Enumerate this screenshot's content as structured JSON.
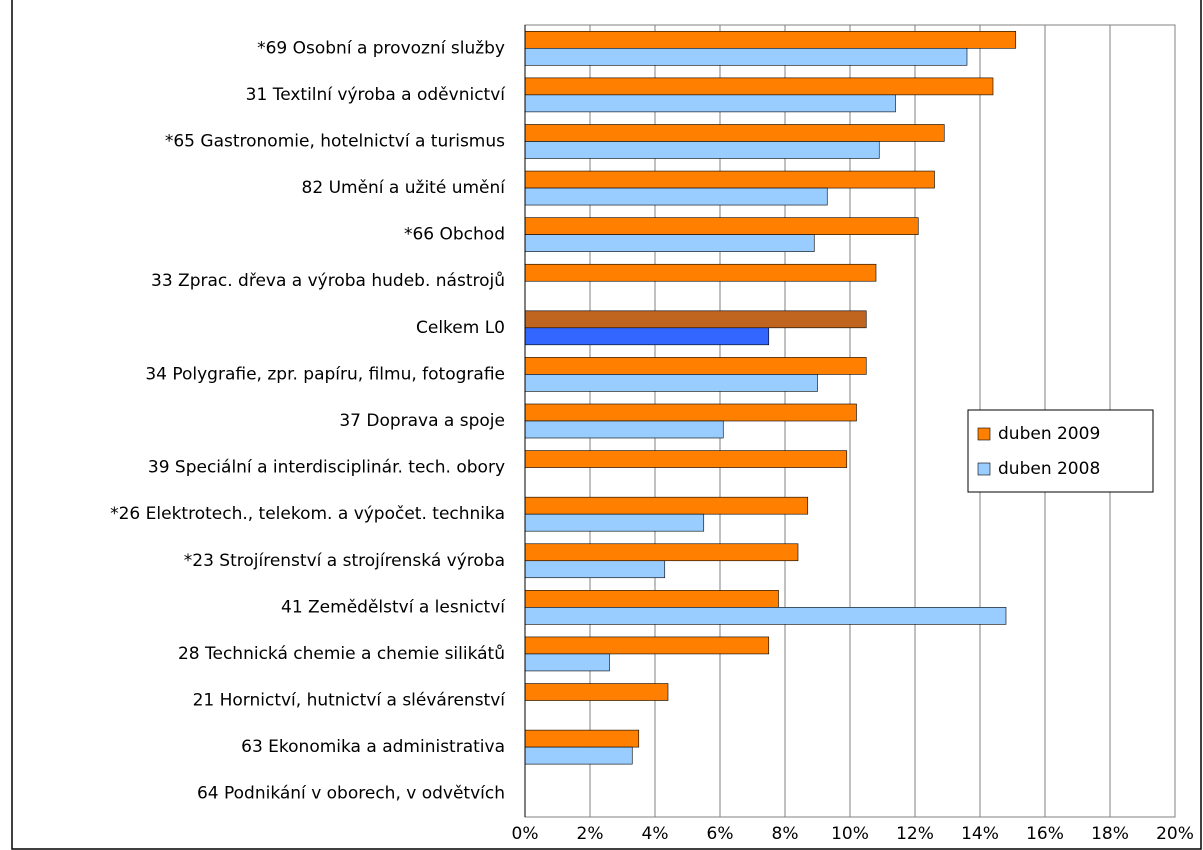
{
  "chart_data": {
    "type": "barh",
    "categories": [
      "*69 Osobní a provozní služby",
      "31 Textilní výroba a oděvnictví",
      "*65 Gastronomie, hotelnictví a turismus",
      "82 Umění a užité umění",
      "*66 Obchod",
      "33 Zprac. dřeva a výroba hudeb. nástrojů",
      "Celkem L0",
      "34 Polygrafie, zpr. papíru, filmu, fotografie",
      "37 Doprava a spoje",
      "39 Speciální a interdisciplinár. tech. obory",
      "*26 Elektrotech., telekom. a výpočet. technika",
      "*23 Strojírenství a strojírenská výroba",
      "41 Zemědělství a lesnictví",
      "28 Technická chemie a chemie silikátů",
      "21 Hornictví, hutnictví a slévárenství",
      "63 Ekonomika a administrativa",
      "64 Podnikání v oborech, v odvětvích"
    ],
    "series": [
      {
        "name": "duben 2009",
        "color": "#ff8000",
        "colors": [
          "#ff8000",
          "#ff8000",
          "#ff8000",
          "#ff8000",
          "#ff8000",
          "#ff8000",
          "#c0651f",
          "#ff8000",
          "#ff8000",
          "#ff8000",
          "#ff8000",
          "#ff8000",
          "#ff8000",
          "#ff8000",
          "#ff8000",
          "#ff8000",
          "#ff8000"
        ],
        "values": [
          15.1,
          14.4,
          12.9,
          12.6,
          12.1,
          10.8,
          10.5,
          10.5,
          10.2,
          9.9,
          8.7,
          8.4,
          7.8,
          7.5,
          4.4,
          3.5,
          null
        ]
      },
      {
        "name": "duben 2008",
        "color": "#99ccff",
        "colors": [
          "#99ccff",
          "#99ccff",
          "#99ccff",
          "#99ccff",
          "#99ccff",
          "#99ccff",
          "#3366ff",
          "#99ccff",
          "#99ccff",
          "#99ccff",
          "#99ccff",
          "#99ccff",
          "#99ccff",
          "#99ccff",
          "#99ccff",
          "#99ccff",
          "#99ccff"
        ],
        "values": [
          13.6,
          11.4,
          10.9,
          9.3,
          8.9,
          null,
          7.5,
          9.0,
          6.1,
          null,
          5.5,
          4.3,
          14.8,
          2.6,
          null,
          3.3,
          null
        ]
      }
    ],
    "xlim": [
      0,
      20
    ],
    "xticks": [
      {
        "value": 0,
        "label": "0%"
      },
      {
        "value": 2,
        "label": "2%"
      },
      {
        "value": 4,
        "label": "4%"
      },
      {
        "value": 6,
        "label": "6%"
      },
      {
        "value": 8,
        "label": "8%"
      },
      {
        "value": 10,
        "label": "10%"
      },
      {
        "value": 12,
        "label": "12%"
      },
      {
        "value": 14,
        "label": "14%"
      },
      {
        "value": 16,
        "label": "16%"
      },
      {
        "value": 18,
        "label": "18%"
      },
      {
        "value": 20,
        "label": "20%"
      }
    ],
    "grid": true,
    "legend": "right"
  }
}
